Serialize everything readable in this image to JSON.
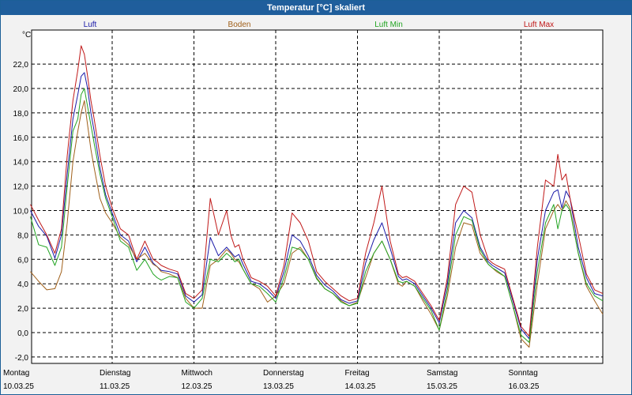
{
  "window": {
    "title": "Temperatur [°C] skaliert"
  },
  "colors": {
    "luft": "#1a1aa8",
    "boden": "#a0601a",
    "luft_min": "#22a422",
    "luft_max": "#c01818",
    "grid": "#000000",
    "background": "#f2f2f2",
    "titlebar": "#1f5e9c"
  },
  "chart_data": {
    "type": "line",
    "title": "Temperatur [°C] skaliert",
    "ylabel": "°C",
    "xlabel": "",
    "ylim": [
      -2.6,
      25.3
    ],
    "xlim": [
      0,
      7.0
    ],
    "grid": true,
    "legend_placement": "top",
    "y_ticks": [
      "22,0",
      "20,0",
      "18,0",
      "16,0",
      "14,0",
      "12,0",
      "10,0",
      "8,0",
      "6,0",
      "4,0",
      "2,0",
      "0,0",
      "-2,0"
    ],
    "y_tick_values": [
      22,
      20,
      18,
      16,
      14,
      12,
      10,
      8,
      6,
      4,
      2,
      0,
      -2
    ],
    "x_ticks": [
      {
        "x": 0,
        "day": "Montag",
        "date": "10.03.25"
      },
      {
        "x": 1,
        "day": "Dienstag",
        "date": "11.03.25"
      },
      {
        "x": 2,
        "day": "Mittwoch",
        "date": "12.03.25"
      },
      {
        "x": 3,
        "day": "Donnerstag",
        "date": "13.03.25"
      },
      {
        "x": 4,
        "day": "Freitag",
        "date": "14.03.25"
      },
      {
        "x": 5,
        "day": "Samstag",
        "date": "15.03.25"
      },
      {
        "x": 6,
        "day": "Sonntag",
        "date": "16.03.25"
      }
    ],
    "series": [
      {
        "name": "Luft",
        "color": "#1a1aa8",
        "x": [
          0,
          0.1,
          0.2,
          0.3,
          0.38,
          0.45,
          0.52,
          0.58,
          0.62,
          0.66,
          0.7,
          0.74,
          0.78,
          0.85,
          0.92,
          1.0,
          1.1,
          1.2,
          1.3,
          1.4,
          1.5,
          1.55,
          1.6,
          1.7,
          1.8,
          1.9,
          2.0,
          2.1,
          2.2,
          2.3,
          2.4,
          2.45,
          2.5,
          2.55,
          2.6,
          2.7,
          2.8,
          2.9,
          3.0,
          3.1,
          3.2,
          3.3,
          3.4,
          3.5,
          3.6,
          3.7,
          3.8,
          3.9,
          4.0,
          4.1,
          4.2,
          4.3,
          4.4,
          4.5,
          4.55,
          4.6,
          4.7,
          4.8,
          4.9,
          5.0,
          5.1,
          5.2,
          5.3,
          5.4,
          5.5,
          5.6,
          5.65,
          5.7,
          5.8,
          5.9,
          6.0,
          6.1,
          6.2,
          6.3,
          6.4,
          6.45,
          6.5,
          6.55,
          6.6,
          6.7,
          6.8,
          6.9,
          7.0
        ],
        "y": [
          10.0,
          8.7,
          7.9,
          6.1,
          8.0,
          13.0,
          17.5,
          19.5,
          21.0,
          21.3,
          20.0,
          18.0,
          16.5,
          13.5,
          11.3,
          9.8,
          8.0,
          7.5,
          5.8,
          7.0,
          5.7,
          5.4,
          5.1,
          5.0,
          4.8,
          3.0,
          2.5,
          3.1,
          7.8,
          6.3,
          7.0,
          6.6,
          6.2,
          6.4,
          5.6,
          4.2,
          4.0,
          3.5,
          2.8,
          5.0,
          8.0,
          7.5,
          6.3,
          4.7,
          3.9,
          3.4,
          2.7,
          2.4,
          2.6,
          5.7,
          7.6,
          9.0,
          6.9,
          4.6,
          4.3,
          4.4,
          4.0,
          3.0,
          2.0,
          0.8,
          4.0,
          9.0,
          10.0,
          9.4,
          7.0,
          5.8,
          5.5,
          5.3,
          4.9,
          2.6,
          0.3,
          -0.5,
          6.0,
          10.0,
          11.5,
          11.7,
          10.2,
          11.6,
          11.0,
          7.0,
          4.5,
          3.2,
          3.0
        ]
      },
      {
        "name": "Boden",
        "color": "#a0601a",
        "x": [
          0,
          0.1,
          0.2,
          0.3,
          0.38,
          0.45,
          0.52,
          0.58,
          0.62,
          0.66,
          0.7,
          0.74,
          0.78,
          0.85,
          0.92,
          1.0,
          1.1,
          1.2,
          1.3,
          1.4,
          1.5,
          1.55,
          1.6,
          1.7,
          1.8,
          1.9,
          2.0,
          2.1,
          2.2,
          2.3,
          2.4,
          2.45,
          2.5,
          2.55,
          2.6,
          2.7,
          2.8,
          2.9,
          3.0,
          3.1,
          3.2,
          3.3,
          3.4,
          3.5,
          3.6,
          3.7,
          3.8,
          3.9,
          4.0,
          4.1,
          4.2,
          4.3,
          4.4,
          4.5,
          4.55,
          4.6,
          4.7,
          4.8,
          4.9,
          5.0,
          5.1,
          5.2,
          5.3,
          5.4,
          5.5,
          5.6,
          5.65,
          5.7,
          5.8,
          5.9,
          6.0,
          6.1,
          6.2,
          6.3,
          6.4,
          6.45,
          6.5,
          6.55,
          6.6,
          6.7,
          6.8,
          6.9,
          7.0
        ],
        "y": [
          5.0,
          4.2,
          3.5,
          3.6,
          5.0,
          9.0,
          14.0,
          16.5,
          18.0,
          19.0,
          17.0,
          15.0,
          13.5,
          11.0,
          9.8,
          9.0,
          7.8,
          7.2,
          6.0,
          6.5,
          5.6,
          5.4,
          5.0,
          4.8,
          4.5,
          2.8,
          2.0,
          2.0,
          5.5,
          6.0,
          6.8,
          6.5,
          6.0,
          5.8,
          5.2,
          4.0,
          3.6,
          2.5,
          3.0,
          4.0,
          6.5,
          7.0,
          6.0,
          4.5,
          3.6,
          3.2,
          2.6,
          2.2,
          2.5,
          4.5,
          6.5,
          7.5,
          6.0,
          4.0,
          3.8,
          4.2,
          3.8,
          2.6,
          1.5,
          0.2,
          3.0,
          7.0,
          9.0,
          8.8,
          6.5,
          5.6,
          5.3,
          5.0,
          4.6,
          2.2,
          -0.5,
          -1.2,
          4.0,
          8.5,
          10.0,
          10.5,
          10.0,
          10.8,
          10.2,
          6.5,
          3.8,
          2.6,
          1.5
        ]
      },
      {
        "name": "Luft Min",
        "color": "#22a422",
        "x": [
          0,
          0.1,
          0.2,
          0.3,
          0.38,
          0.45,
          0.52,
          0.58,
          0.62,
          0.66,
          0.7,
          0.74,
          0.78,
          0.85,
          0.92,
          1.0,
          1.1,
          1.2,
          1.3,
          1.4,
          1.5,
          1.55,
          1.6,
          1.7,
          1.8,
          1.9,
          2.0,
          2.1,
          2.2,
          2.3,
          2.4,
          2.45,
          2.5,
          2.55,
          2.6,
          2.7,
          2.8,
          2.9,
          3.0,
          3.1,
          3.2,
          3.3,
          3.4,
          3.5,
          3.6,
          3.7,
          3.8,
          3.9,
          4.0,
          4.1,
          4.2,
          4.3,
          4.4,
          4.5,
          4.55,
          4.6,
          4.7,
          4.8,
          4.9,
          5.0,
          5.1,
          5.2,
          5.3,
          5.4,
          5.5,
          5.6,
          5.65,
          5.7,
          5.8,
          5.9,
          6.0,
          6.1,
          6.2,
          6.3,
          6.4,
          6.45,
          6.5,
          6.55,
          6.6,
          6.7,
          6.8,
          6.9,
          7.0
        ],
        "y": [
          9.5,
          7.2,
          7.0,
          5.5,
          7.0,
          12.0,
          16.5,
          17.5,
          19.5,
          20.0,
          18.5,
          17.0,
          15.5,
          13.0,
          11.0,
          9.5,
          7.5,
          7.0,
          5.1,
          6.0,
          4.8,
          4.5,
          4.3,
          4.6,
          4.5,
          2.5,
          2.0,
          2.8,
          6.0,
          5.8,
          6.5,
          6.2,
          5.8,
          6.0,
          5.2,
          4.0,
          3.8,
          3.2,
          2.5,
          4.5,
          7.0,
          6.8,
          6.0,
          4.4,
          3.6,
          3.2,
          2.5,
          2.2,
          2.4,
          5.0,
          6.5,
          7.5,
          6.0,
          4.2,
          4.1,
          4.2,
          3.8,
          2.8,
          1.8,
          0.2,
          3.5,
          8.0,
          9.5,
          9.2,
          6.8,
          5.6,
          5.3,
          5.1,
          4.6,
          2.2,
          -0.2,
          -0.8,
          5.0,
          9.0,
          10.5,
          8.5,
          10.0,
          10.5,
          10.0,
          6.5,
          4.0,
          3.0,
          2.6
        ]
      },
      {
        "name": "Luft Max",
        "color": "#c01818",
        "x": [
          0,
          0.1,
          0.2,
          0.3,
          0.38,
          0.45,
          0.52,
          0.58,
          0.62,
          0.66,
          0.7,
          0.74,
          0.78,
          0.85,
          0.92,
          1.0,
          1.1,
          1.2,
          1.3,
          1.4,
          1.5,
          1.55,
          1.6,
          1.7,
          1.8,
          1.9,
          2.0,
          2.1,
          2.2,
          2.3,
          2.4,
          2.45,
          2.5,
          2.55,
          2.6,
          2.7,
          2.8,
          2.9,
          3.0,
          3.1,
          3.2,
          3.3,
          3.4,
          3.5,
          3.6,
          3.7,
          3.8,
          3.9,
          4.0,
          4.1,
          4.2,
          4.3,
          4.4,
          4.5,
          4.55,
          4.6,
          4.7,
          4.8,
          4.9,
          5.0,
          5.1,
          5.2,
          5.3,
          5.4,
          5.5,
          5.6,
          5.65,
          5.7,
          5.8,
          5.9,
          6.0,
          6.1,
          6.2,
          6.3,
          6.4,
          6.45,
          6.5,
          6.55,
          6.6,
          6.7,
          6.8,
          6.9,
          7.0
        ],
        "y": [
          10.5,
          9.2,
          8.0,
          6.5,
          8.5,
          14.5,
          19.0,
          21.5,
          23.5,
          22.8,
          21.0,
          19.0,
          17.5,
          14.5,
          12.0,
          10.2,
          8.5,
          8.0,
          6.0,
          7.5,
          6.0,
          5.8,
          5.5,
          5.2,
          5.0,
          3.2,
          2.8,
          3.5,
          11.0,
          8.0,
          10.0,
          8.0,
          7.0,
          7.2,
          6.0,
          4.5,
          4.2,
          3.8,
          3.0,
          5.5,
          9.8,
          9.0,
          7.5,
          5.0,
          4.2,
          3.6,
          3.0,
          2.6,
          2.8,
          6.5,
          9.0,
          12.0,
          7.5,
          4.8,
          4.5,
          4.6,
          4.2,
          3.2,
          2.2,
          1.0,
          4.5,
          10.5,
          12.0,
          11.5,
          8.0,
          6.0,
          5.7,
          5.5,
          5.2,
          2.8,
          0.5,
          -0.3,
          7.0,
          12.5,
          12.0,
          14.6,
          12.5,
          13.0,
          11.0,
          8.0,
          4.8,
          3.5,
          3.2
        ]
      }
    ]
  }
}
